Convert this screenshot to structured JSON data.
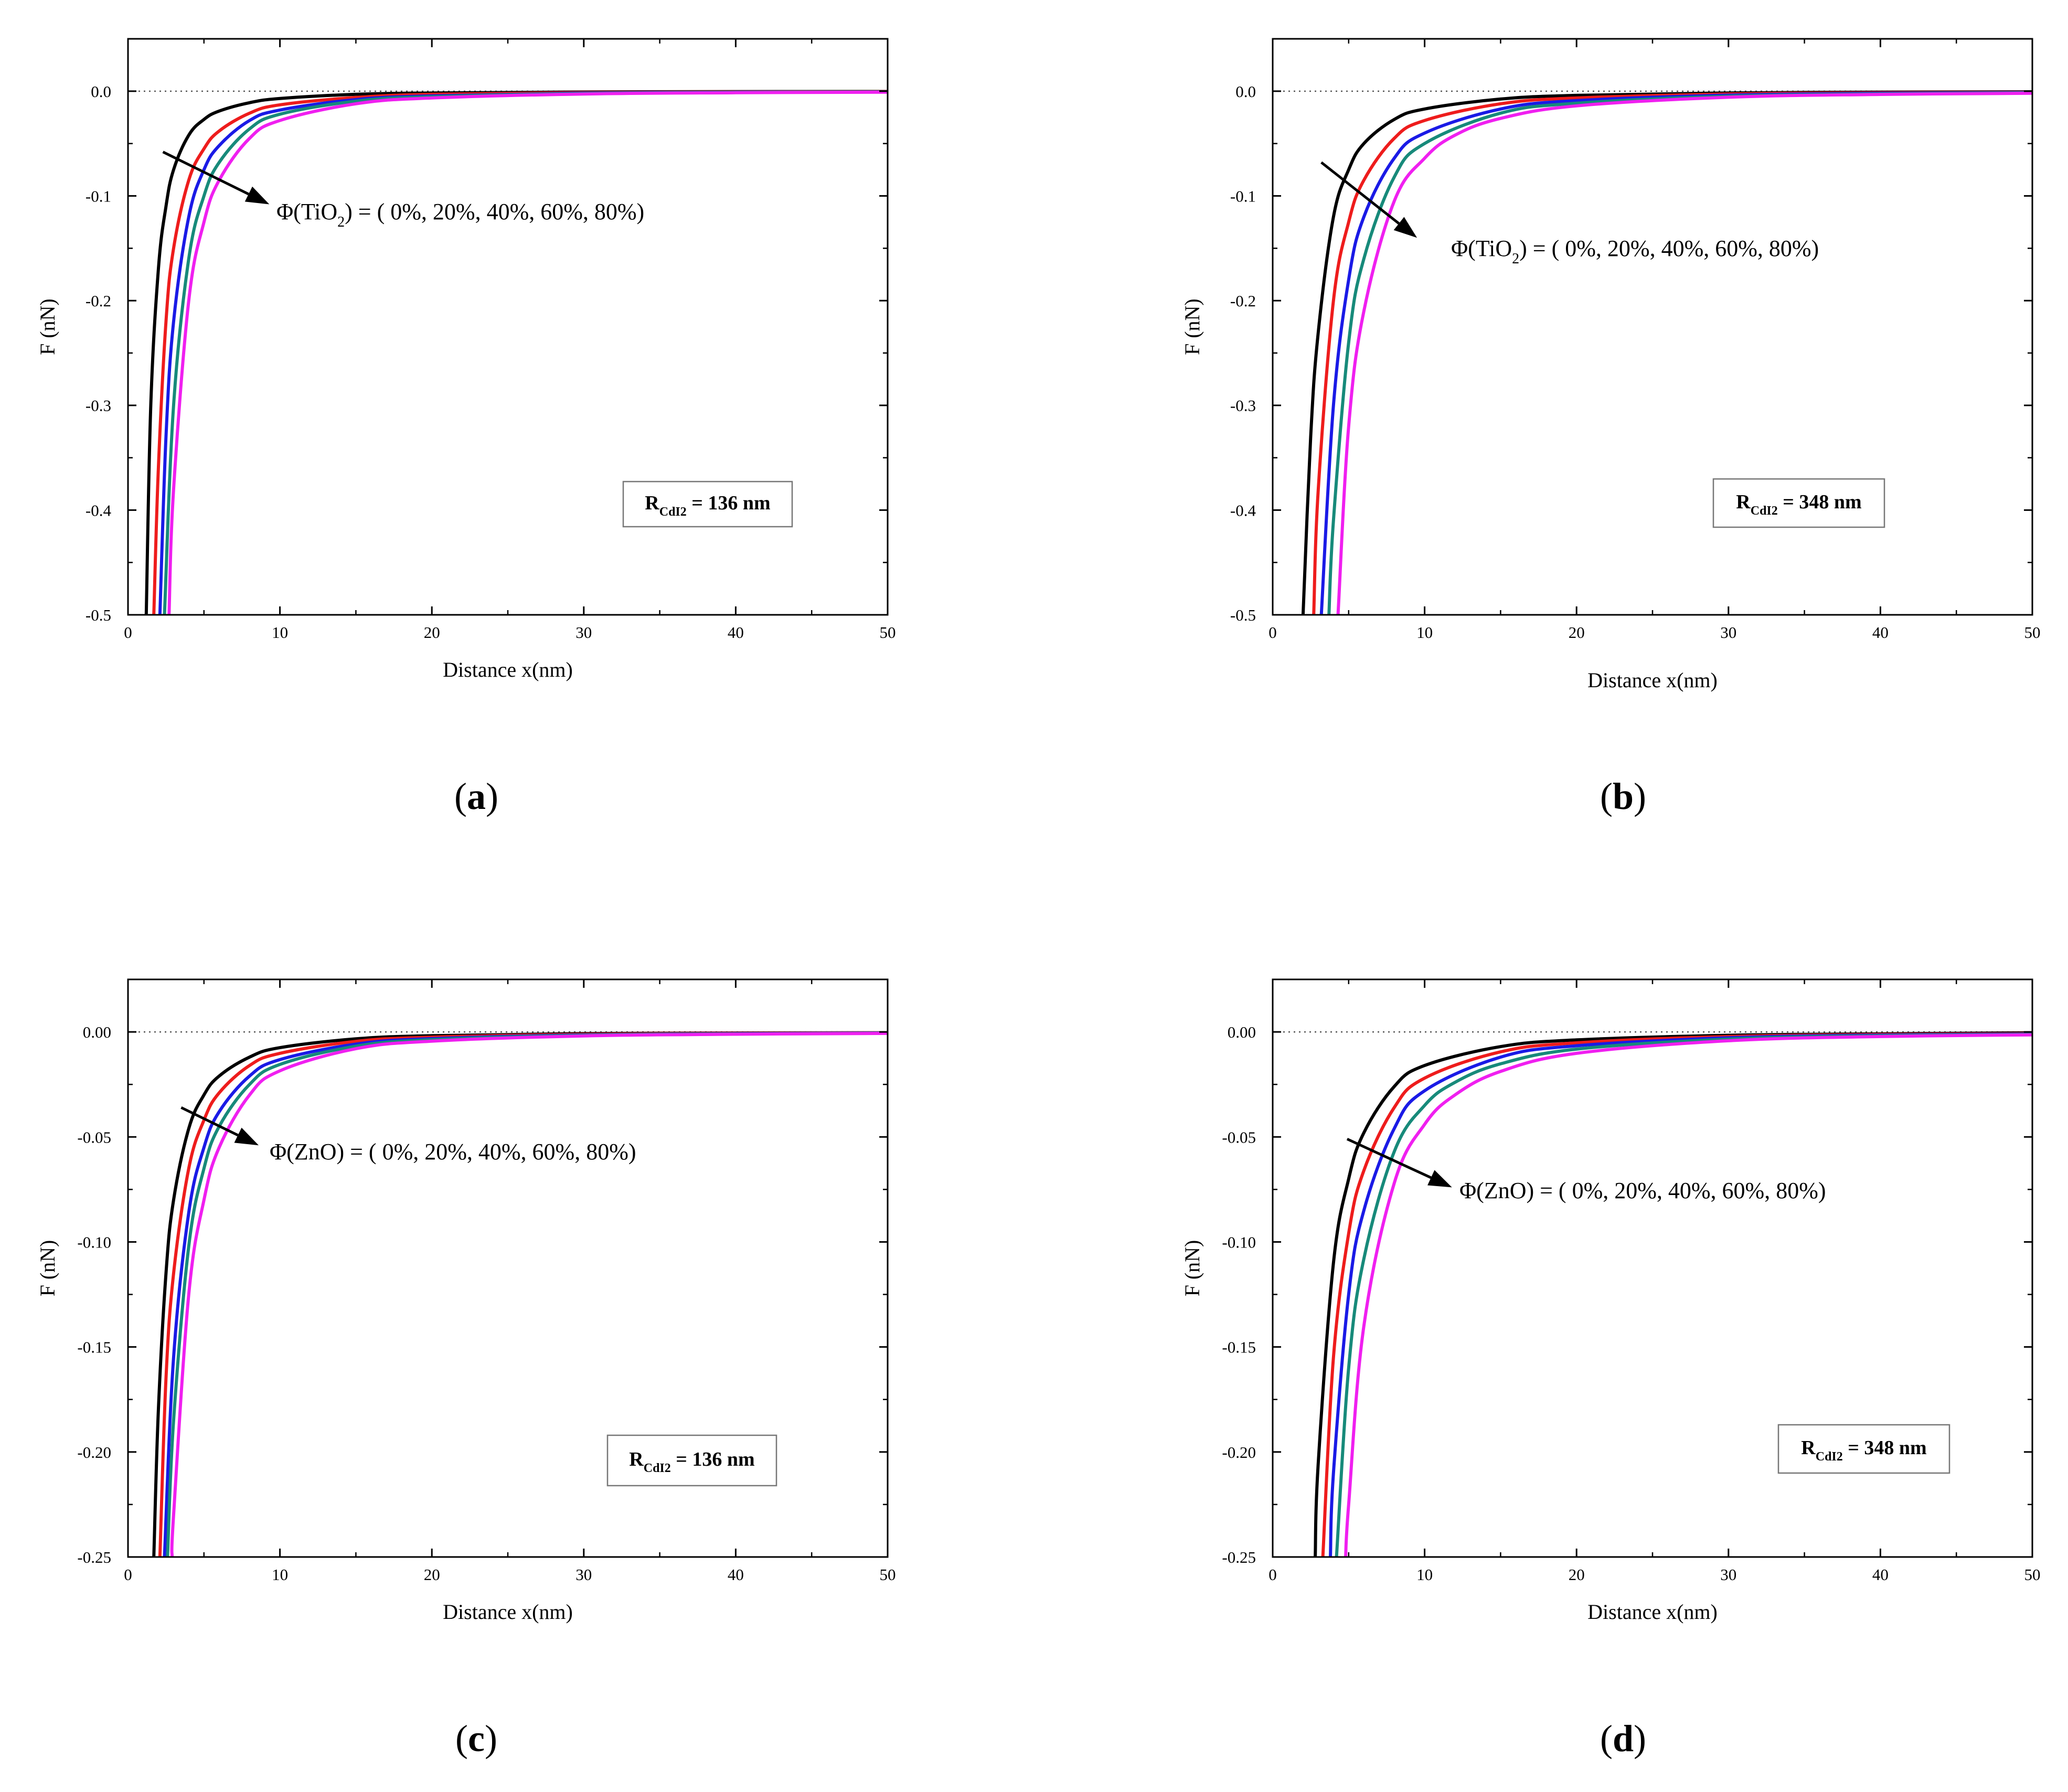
{
  "figure": {
    "series_colors": [
      "#000000",
      "#ee1c1c",
      "#1a1ae6",
      "#178a7a",
      "#f01ff0"
    ],
    "panels": [
      {
        "label": "(a)",
        "label_bold": "a",
        "annotation": {
          "prefix": "Φ(TiO",
          "sub": "2",
          "suffix": ") = ( 0%, 20%, 40%, 60%, 80%)"
        },
        "box": {
          "prefix": "R",
          "sub": "CdI2",
          "suffix": " = 136 nm"
        }
      },
      {
        "label": "(b)",
        "label_bold": "b",
        "annotation": {
          "prefix": "Φ(TiO",
          "sub": "2",
          "suffix": ") = ( 0%, 20%, 40%, 60%, 80%)"
        },
        "box": {
          "prefix": "R",
          "sub": "CdI2",
          "suffix": " = 348 nm"
        }
      },
      {
        "label": "(c)",
        "label_bold": "c",
        "annotation": {
          "prefix": "Φ(ZnO) = ( 0%, 20%, 40%, 60%, 80%)",
          "sub": "",
          "suffix": ""
        },
        "box": {
          "prefix": "R",
          "sub": "CdI2",
          "suffix": " = 136 nm"
        }
      },
      {
        "label": "(d)",
        "label_bold": "d",
        "annotation": {
          "prefix": "Φ(ZnO) = ( 0%, 20%, 40%, 60%, 80%)",
          "sub": "",
          "suffix": ""
        },
        "box": {
          "prefix": "R",
          "sub": "CdI2",
          "suffix": " = 348 nm"
        }
      }
    ]
  },
  "chart_data": [
    {
      "type": "line",
      "xlabel": "Distance x(nm)",
      "ylabel": "F (nN)",
      "xlim": [
        0,
        50
      ],
      "ylim": [
        -0.5,
        0.05
      ],
      "x_ticks": [
        "0",
        "10",
        "20",
        "30",
        "40",
        "50"
      ],
      "y_ticks": [
        "0.0",
        "-0.1",
        "-0.2",
        "-0.3",
        "-0.4",
        "-0.5"
      ],
      "y_tick_values": [
        0,
        -0.1,
        -0.2,
        -0.3,
        -0.4,
        -0.5
      ],
      "zero_line": true,
      "series": [
        {
          "color": "#000000",
          "x": [
            1.2,
            1.5,
            2,
            2.5,
            3,
            4,
            5,
            6,
            8,
            10,
            15,
            20,
            30,
            40,
            50
          ],
          "y": [
            -0.5,
            -0.3,
            -0.17,
            -0.11,
            -0.075,
            -0.042,
            -0.027,
            -0.019,
            -0.011,
            -0.007,
            -0.003,
            -0.0017,
            -0.0008,
            -0.0004,
            -0.0003
          ]
        },
        {
          "color": "#ee1c1c",
          "x": [
            1.7,
            2,
            2.5,
            3,
            4,
            5,
            6,
            8,
            10,
            15,
            20,
            30,
            40,
            50
          ],
          "y": [
            -0.5,
            -0.36,
            -0.22,
            -0.15,
            -0.085,
            -0.055,
            -0.038,
            -0.021,
            -0.013,
            -0.006,
            -0.003,
            -0.0013,
            -0.0007,
            -0.0005
          ]
        },
        {
          "color": "#1a1ae6",
          "x": [
            2.1,
            2.5,
            3,
            4,
            5,
            6,
            8,
            10,
            15,
            20,
            30,
            40,
            50
          ],
          "y": [
            -0.5,
            -0.33,
            -0.22,
            -0.12,
            -0.075,
            -0.052,
            -0.028,
            -0.018,
            -0.008,
            -0.0045,
            -0.0018,
            -0.001,
            -0.0007
          ]
        },
        {
          "color": "#178a7a",
          "x": [
            2.4,
            3,
            4,
            5,
            6,
            8,
            10,
            15,
            20,
            30,
            40,
            50
          ],
          "y": [
            -0.5,
            -0.3,
            -0.16,
            -0.1,
            -0.068,
            -0.036,
            -0.022,
            -0.0095,
            -0.0053,
            -0.0022,
            -0.0012,
            -0.0008
          ]
        },
        {
          "color": "#f01ff0",
          "x": [
            2.7,
            3,
            4,
            5,
            6,
            8,
            10,
            15,
            20,
            30,
            40,
            50
          ],
          "y": [
            -0.5,
            -0.38,
            -0.2,
            -0.125,
            -0.085,
            -0.045,
            -0.028,
            -0.012,
            -0.0065,
            -0.0027,
            -0.0015,
            -0.001
          ]
        }
      ],
      "arrow": {
        "from": [
          2.3,
          -0.058
        ],
        "to": [
          9.3,
          -0.108
        ]
      }
    },
    {
      "type": "line",
      "xlabel": "Distance x(nm)",
      "ylabel": "F (nN)",
      "xlim": [
        0,
        50
      ],
      "ylim": [
        -0.5,
        0.05
      ],
      "x_ticks": [
        "0",
        "10",
        "20",
        "30",
        "40",
        "50"
      ],
      "y_ticks": [
        "0.0",
        "-0.1",
        "-0.2",
        "-0.3",
        "-0.4",
        "-0.5"
      ],
      "y_tick_values": [
        0,
        -0.1,
        -0.2,
        -0.3,
        -0.4,
        -0.5
      ],
      "zero_line": true,
      "series": [
        {
          "color": "#000000",
          "x": [
            2,
            2.5,
            3,
            4,
            5,
            6,
            8,
            10,
            15,
            20,
            30,
            40,
            50
          ],
          "y": [
            -0.5,
            -0.33,
            -0.23,
            -0.12,
            -0.075,
            -0.05,
            -0.027,
            -0.017,
            -0.0075,
            -0.004,
            -0.0017,
            -0.0009,
            -0.0006
          ]
        },
        {
          "color": "#ee1c1c",
          "x": [
            2.7,
            3,
            4,
            5,
            6,
            8,
            10,
            15,
            20,
            30,
            40,
            50
          ],
          "y": [
            -0.5,
            -0.38,
            -0.2,
            -0.125,
            -0.085,
            -0.045,
            -0.028,
            -0.012,
            -0.0065,
            -0.0027,
            -0.0015,
            -0.001
          ]
        },
        {
          "color": "#1a1ae6",
          "x": [
            3.2,
            4,
            5,
            6,
            8,
            10,
            15,
            20,
            30,
            40,
            50
          ],
          "y": [
            -0.5,
            -0.3,
            -0.18,
            -0.12,
            -0.064,
            -0.04,
            -0.017,
            -0.009,
            -0.0038,
            -0.002,
            -0.0013
          ]
        },
        {
          "color": "#178a7a",
          "x": [
            3.7,
            4,
            5,
            6,
            8,
            10,
            15,
            20,
            30,
            40,
            50
          ],
          "y": [
            -0.5,
            -0.41,
            -0.24,
            -0.16,
            -0.082,
            -0.05,
            -0.021,
            -0.0115,
            -0.0048,
            -0.0026,
            -0.0016
          ]
        },
        {
          "color": "#f01ff0",
          "x": [
            4.3,
            5,
            6,
            8,
            10,
            12,
            15,
            20,
            30,
            40,
            50
          ],
          "y": [
            -0.5,
            -0.32,
            -0.21,
            -0.105,
            -0.064,
            -0.042,
            -0.026,
            -0.014,
            -0.0058,
            -0.0031,
            -0.002
          ]
        }
      ],
      "arrow": {
        "from": [
          3.2,
          -0.068
        ],
        "to": [
          9.5,
          -0.14
        ]
      }
    },
    {
      "type": "line",
      "xlabel": "Distance x(nm)",
      "ylabel": "F (nN)",
      "xlim": [
        0,
        50
      ],
      "ylim": [
        -0.25,
        0.025
      ],
      "x_ticks": [
        "0",
        "10",
        "20",
        "30",
        "40",
        "50"
      ],
      "y_ticks": [
        "0.00",
        "-0.05",
        "-0.10",
        "-0.15",
        "-0.20",
        "-0.25"
      ],
      "y_tick_values": [
        0,
        -0.05,
        -0.1,
        -0.15,
        -0.2,
        -0.25
      ],
      "zero_line": true,
      "series": [
        {
          "color": "#000000",
          "x": [
            1.7,
            2,
            2.5,
            3,
            4,
            5,
            6,
            8,
            10,
            15,
            20,
            30,
            40,
            50
          ],
          "y": [
            -0.25,
            -0.18,
            -0.115,
            -0.08,
            -0.046,
            -0.03,
            -0.021,
            -0.012,
            -0.0075,
            -0.0033,
            -0.0018,
            -0.0008,
            -0.0005,
            -0.0004
          ]
        },
        {
          "color": "#ee1c1c",
          "x": [
            2.1,
            2.5,
            3,
            4,
            5,
            6,
            8,
            10,
            15,
            20,
            30,
            40,
            50
          ],
          "y": [
            -0.25,
            -0.165,
            -0.115,
            -0.065,
            -0.042,
            -0.029,
            -0.016,
            -0.0102,
            -0.0045,
            -0.0025,
            -0.0011,
            -0.0006,
            -0.0004
          ]
        },
        {
          "color": "#1a1ae6",
          "x": [
            2.4,
            3,
            4,
            5,
            6,
            8,
            10,
            15,
            20,
            30,
            40,
            50
          ],
          "y": [
            -0.25,
            -0.155,
            -0.086,
            -0.055,
            -0.038,
            -0.021,
            -0.0132,
            -0.0058,
            -0.0032,
            -0.0014,
            -0.0008,
            -0.0005
          ]
        },
        {
          "color": "#178a7a",
          "x": [
            2.6,
            3,
            4,
            5,
            6,
            8,
            10,
            15,
            20,
            30,
            40,
            50
          ],
          "y": [
            -0.25,
            -0.185,
            -0.102,
            -0.065,
            -0.045,
            -0.025,
            -0.0155,
            -0.0068,
            -0.0037,
            -0.0016,
            -0.0009,
            -0.0006
          ]
        },
        {
          "color": "#f01ff0",
          "x": [
            2.9,
            3,
            4,
            5,
            6,
            8,
            10,
            15,
            20,
            30,
            40,
            50
          ],
          "y": [
            -0.25,
            -0.23,
            -0.125,
            -0.08,
            -0.055,
            -0.03,
            -0.0185,
            -0.008,
            -0.0044,
            -0.0019,
            -0.0011,
            -0.0007
          ]
        }
      ],
      "arrow": {
        "from": [
          3.5,
          -0.036
        ],
        "to": [
          8.6,
          -0.054
        ]
      }
    },
    {
      "type": "line",
      "xlabel": "Distance x(nm)",
      "ylabel": "F (nN)",
      "xlim": [
        0,
        50
      ],
      "ylim": [
        -0.25,
        0.025
      ],
      "x_ticks": [
        "0",
        "10",
        "20",
        "30",
        "40",
        "50"
      ],
      "y_ticks": [
        "0.00",
        "-0.05",
        "-0.10",
        "-0.15",
        "-0.20",
        "-0.25"
      ],
      "y_tick_values": [
        0,
        -0.05,
        -0.1,
        -0.15,
        -0.2,
        -0.25
      ],
      "zero_line": true,
      "series": [
        {
          "color": "#000000",
          "x": [
            2.8,
            3,
            4,
            5,
            6,
            8,
            10,
            15,
            20,
            30,
            40,
            50
          ],
          "y": [
            -0.25,
            -0.205,
            -0.11,
            -0.07,
            -0.048,
            -0.026,
            -0.016,
            -0.007,
            -0.0038,
            -0.0016,
            -0.0009,
            -0.0004
          ]
        },
        {
          "color": "#ee1c1c",
          "x": [
            3.3,
            4,
            5,
            6,
            8,
            10,
            15,
            20,
            30,
            40,
            50
          ],
          "y": [
            -0.25,
            -0.155,
            -0.096,
            -0.066,
            -0.036,
            -0.022,
            -0.0095,
            -0.0052,
            -0.0022,
            -0.0012,
            -0.0008
          ]
        },
        {
          "color": "#1a1ae6",
          "x": [
            3.8,
            4,
            5,
            6,
            8,
            10,
            15,
            20,
            30,
            40,
            50
          ],
          "y": [
            -0.25,
            -0.21,
            -0.125,
            -0.085,
            -0.046,
            -0.028,
            -0.012,
            -0.0066,
            -0.0028,
            -0.0015,
            -0.001
          ]
        },
        {
          "color": "#178a7a",
          "x": [
            4.2,
            5,
            6,
            8,
            10,
            12,
            15,
            20,
            30,
            40,
            50
          ],
          "y": [
            -0.25,
            -0.16,
            -0.108,
            -0.057,
            -0.035,
            -0.024,
            -0.0152,
            -0.0082,
            -0.0034,
            -0.0018,
            -0.0012
          ]
        },
        {
          "color": "#f01ff0",
          "x": [
            4.8,
            5,
            6,
            8,
            10,
            12,
            15,
            20,
            30,
            40,
            50
          ],
          "y": [
            -0.25,
            -0.225,
            -0.14,
            -0.072,
            -0.044,
            -0.03,
            -0.0188,
            -0.0102,
            -0.0042,
            -0.0022,
            -0.0014
          ]
        }
      ],
      "arrow": {
        "from": [
          4.9,
          -0.051
        ],
        "to": [
          11.8,
          -0.074
        ]
      }
    }
  ]
}
